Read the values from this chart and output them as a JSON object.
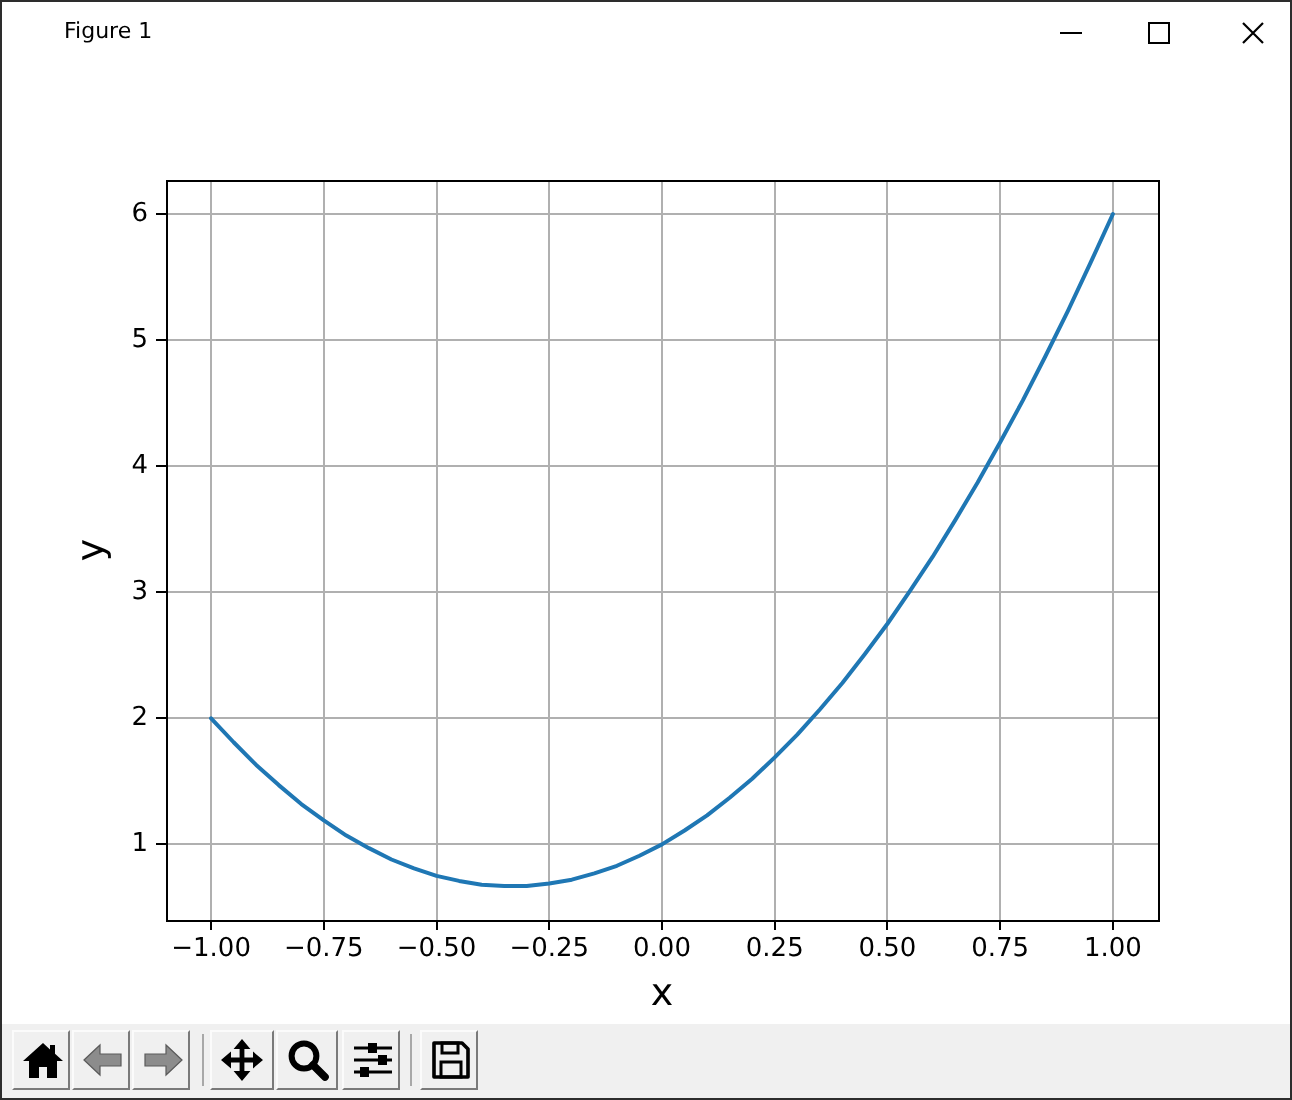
{
  "chart_data": {
    "type": "line",
    "annotations": [
      "Figure 1"
    ],
    "xlabel": "x",
    "ylabel": "y",
    "x": [
      -1,
      -0.95,
      -0.9,
      -0.85,
      -0.8,
      -0.75,
      -0.7,
      -0.65,
      -0.6,
      -0.55,
      -0.5,
      -0.45,
      -0.4,
      -0.35,
      -0.3,
      -0.25,
      -0.2,
      -0.15,
      -0.1,
      -0.05,
      0,
      0.05,
      0.1,
      0.15,
      0.2,
      0.25,
      0.3,
      0.35,
      0.4,
      0.45,
      0.5,
      0.55,
      0.6,
      0.65,
      0.7,
      0.75,
      0.8,
      0.85,
      0.9,
      0.95,
      1
    ],
    "values": [
      2,
      1.81,
      1.63,
      1.47,
      1.32,
      1.19,
      1.07,
      0.97,
      0.88,
      0.81,
      0.75,
      0.71,
      0.68,
      0.67,
      0.67,
      0.69,
      0.72,
      0.77,
      0.83,
      0.91,
      1,
      1.11,
      1.23,
      1.37,
      1.52,
      1.69,
      1.87,
      2.07,
      2.28,
      2.51,
      2.75,
      3.01,
      3.28,
      3.57,
      3.87,
      4.19,
      4.52,
      4.87,
      5.23,
      5.61,
      6
    ],
    "color": "#1f77b4",
    "xlim": [
      -1.1,
      1.1
    ],
    "ylim": [
      0.4,
      6.27
    ],
    "xticks": [
      {
        "value": -1,
        "label": "−1.00"
      },
      {
        "value": -0.75,
        "label": "−0.75"
      },
      {
        "value": -0.5,
        "label": "−0.50"
      },
      {
        "value": -0.25,
        "label": "−0.25"
      },
      {
        "value": 0,
        "label": "0.00"
      },
      {
        "value": 0.25,
        "label": "0.25"
      },
      {
        "value": 0.5,
        "label": "0.50"
      },
      {
        "value": 0.75,
        "label": "0.75"
      },
      {
        "value": 1,
        "label": "1.00"
      }
    ],
    "yticks": [
      1,
      2,
      3,
      4,
      5,
      6
    ],
    "grid": true
  }
}
